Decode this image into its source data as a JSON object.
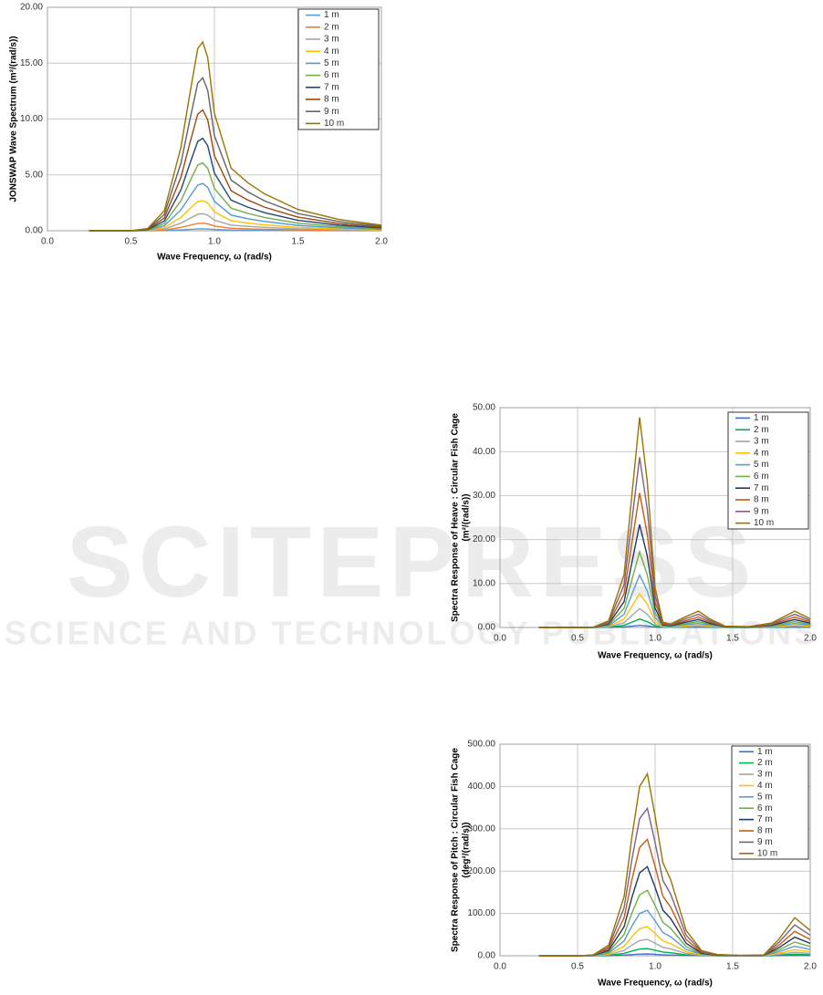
{
  "watermark": {
    "brand": "SCITEPRESS",
    "tagline": "SCIENCE AND TECHNOLOGY PUBLICATIONS"
  },
  "chart_data": [
    {
      "type": "line",
      "x_label": "Wave Frequency, ω (rad/s)",
      "y_label": [
        "JONSWAP Wave Spectrum (m²/(rad/s))"
      ],
      "xlim": [
        0,
        2
      ],
      "ylim": [
        0,
        20
      ],
      "grid": true,
      "legend": "upper right",
      "xticks": [
        {
          "value": 0,
          "label": "0.0"
        },
        {
          "value": 0.5,
          "label": "0.5"
        },
        {
          "value": 1,
          "label": "1.0"
        },
        {
          "value": 1.5,
          "label": "1.5"
        },
        {
          "value": 2,
          "label": "2.0"
        }
      ],
      "yticks": [
        {
          "value": 0,
          "label": "0.00"
        },
        {
          "value": 5,
          "label": "5.00"
        },
        {
          "value": 10,
          "label": "10.00"
        },
        {
          "value": 15,
          "label": "15.00"
        },
        {
          "value": 20,
          "label": "20.00"
        }
      ],
      "x": [
        0.25,
        0.5,
        0.6,
        0.7,
        0.8,
        0.85,
        0.9,
        0.93,
        0.96,
        1.0,
        1.1,
        1.2,
        1.3,
        1.5,
        1.75,
        2.0
      ],
      "series": [
        {
          "name": "1 m",
          "color": "#5b9bd5",
          "values": [
            0,
            0,
            0,
            0.02,
            0.08,
            0.12,
            0.16,
            0.17,
            0.16,
            0.11,
            0.06,
            0.04,
            0.03,
            0.02,
            0.01,
            0.01
          ]
        },
        {
          "name": "2 m",
          "color": "#ed7d31",
          "values": [
            0,
            0,
            0.01,
            0.07,
            0.3,
            0.48,
            0.65,
            0.68,
            0.62,
            0.42,
            0.22,
            0.17,
            0.13,
            0.08,
            0.04,
            0.02
          ]
        },
        {
          "name": "3 m",
          "color": "#a5a5a5",
          "values": [
            0,
            0,
            0.02,
            0.16,
            0.68,
            1.08,
            1.47,
            1.52,
            1.4,
            0.95,
            0.5,
            0.39,
            0.3,
            0.17,
            0.09,
            0.05
          ]
        },
        {
          "name": "4 m",
          "color": "#ffc000",
          "values": [
            0,
            0,
            0.03,
            0.29,
            1.2,
            1.92,
            2.61,
            2.7,
            2.48,
            1.68,
            0.9,
            0.69,
            0.53,
            0.3,
            0.16,
            0.08
          ]
        },
        {
          "name": "5 m",
          "color": "#4e9ad8",
          "values": [
            0,
            0,
            0.05,
            0.45,
            1.88,
            3,
            4.08,
            4.23,
            3.88,
            2.63,
            1.4,
            1.08,
            0.83,
            0.48,
            0.25,
            0.13
          ]
        },
        {
          "name": "6 m",
          "color": "#70ad47",
          "values": [
            0,
            0,
            0.07,
            0.65,
            2.7,
            4.32,
            5.87,
            6.08,
            5.58,
            3.78,
            2.02,
            1.55,
            1.19,
            0.68,
            0.36,
            0.18
          ]
        },
        {
          "name": "7 m",
          "color": "#264478",
          "values": [
            0,
            0,
            0.1,
            0.88,
            3.68,
            5.88,
            7.99,
            8.28,
            7.6,
            5.15,
            2.74,
            2.11,
            1.62,
            0.93,
            0.49,
            0.25
          ]
        },
        {
          "name": "8 m",
          "color": "#9e480e",
          "values": [
            0,
            0,
            0.13,
            1.15,
            4.8,
            7.68,
            10.43,
            10.82,
            9.92,
            6.72,
            3.58,
            2.75,
            2.11,
            1.22,
            0.64,
            0.32
          ]
        },
        {
          "name": "9 m",
          "color": "#636363",
          "values": [
            0,
            0,
            0.16,
            1.46,
            6.08,
            9.72,
            13.2,
            13.69,
            12.56,
            8.51,
            4.54,
            3.48,
            2.67,
            1.54,
            0.81,
            0.41
          ]
        },
        {
          "name": "10 m",
          "color": "#997300",
          "values": [
            0,
            0,
            0.2,
            1.8,
            7.5,
            12,
            16.3,
            16.9,
            15.5,
            10.5,
            5.6,
            4.3,
            3.3,
            1.9,
            1.0,
            0.5
          ]
        }
      ]
    },
    {
      "type": "line",
      "x_label": "Wave Frequency, ω (rad/s)",
      "y_label": [
        "Spectra Response of Heave : Circular Fish Cage",
        "(m²/(rad/s))"
      ],
      "xlim": [
        0,
        2
      ],
      "ylim": [
        0,
        50
      ],
      "grid": true,
      "legend": "upper right",
      "xticks": [
        {
          "value": 0,
          "label": "0.0"
        },
        {
          "value": 0.5,
          "label": "0.5"
        },
        {
          "value": 1,
          "label": "1.0"
        },
        {
          "value": 1.5,
          "label": "1.5"
        },
        {
          "value": 2,
          "label": "2.0"
        }
      ],
      "yticks": [
        {
          "value": 0,
          "label": "0.00"
        },
        {
          "value": 10,
          "label": "10.00"
        },
        {
          "value": 20,
          "label": "20.00"
        },
        {
          "value": 30,
          "label": "30.00"
        },
        {
          "value": 40,
          "label": "40.00"
        },
        {
          "value": 50,
          "label": "50.00"
        }
      ],
      "x": [
        0.25,
        0.5,
        0.6,
        0.7,
        0.8,
        0.85,
        0.9,
        0.95,
        1.0,
        1.05,
        1.1,
        1.2,
        1.28,
        1.35,
        1.45,
        1.6,
        1.75,
        1.9,
        2.0
      ],
      "series": [
        {
          "name": "1 m",
          "color": "#4472c4",
          "values": [
            0,
            0,
            0,
            0.02,
            0.12,
            0.3,
            0.48,
            0.33,
            0.09,
            0.01,
            0.01,
            0.03,
            0.04,
            0.02,
            0,
            0,
            0.01,
            0.04,
            0.02
          ]
        },
        {
          "name": "2 m",
          "color": "#00b050",
          "values": [
            0,
            0,
            0,
            0.06,
            0.48,
            1.2,
            1.91,
            1.32,
            0.36,
            0.05,
            0.03,
            0.1,
            0.15,
            0.08,
            0.01,
            0.01,
            0.04,
            0.15,
            0.08
          ]
        },
        {
          "name": "3 m",
          "color": "#a5a5a5",
          "values": [
            0,
            0,
            0,
            0.14,
            1.08,
            2.7,
            4.3,
            2.97,
            0.81,
            0.11,
            0.07,
            0.23,
            0.33,
            0.18,
            0.03,
            0.02,
            0.09,
            0.33,
            0.18
          ]
        },
        {
          "name": "4 m",
          "color": "#ffc000",
          "values": [
            0,
            0,
            0.01,
            0.24,
            1.92,
            4.8,
            7.65,
            5.28,
            1.44,
            0.19,
            0.13,
            0.4,
            0.59,
            0.32,
            0.05,
            0.03,
            0.16,
            0.59,
            0.32
          ]
        },
        {
          "name": "5 m",
          "color": "#5b9bd5",
          "values": [
            0,
            0,
            0.01,
            0.38,
            3,
            7.5,
            11.95,
            8.25,
            2.25,
            0.3,
            0.2,
            0.63,
            0.93,
            0.5,
            0.08,
            0.05,
            0.25,
            0.93,
            0.5
          ]
        },
        {
          "name": "6 m",
          "color": "#70ad47",
          "values": [
            0,
            0,
            0.02,
            0.54,
            4.32,
            10.8,
            17.21,
            11.88,
            3.24,
            0.43,
            0.29,
            0.9,
            1.33,
            0.72,
            0.11,
            0.07,
            0.36,
            1.33,
            0.72
          ]
        },
        {
          "name": "7 m",
          "color": "#1f3864",
          "values": [
            0,
            0,
            0.02,
            0.74,
            5.88,
            14.7,
            23.42,
            16.17,
            4.41,
            0.59,
            0.39,
            1.23,
            1.81,
            0.98,
            0.15,
            0.1,
            0.49,
            1.81,
            0.98
          ]
        },
        {
          "name": "8 m",
          "color": "#c55a11",
          "values": [
            0,
            0,
            0.03,
            0.96,
            7.68,
            19.2,
            30.59,
            21.12,
            5.76,
            0.77,
            0.51,
            1.6,
            2.37,
            1.28,
            0.19,
            0.13,
            0.64,
            2.37,
            1.28
          ]
        },
        {
          "name": "9 m",
          "color": "#7f6084",
          "values": [
            0,
            0,
            0.04,
            1.22,
            9.72,
            24.3,
            38.72,
            26.73,
            7.29,
            0.97,
            0.65,
            2.03,
            3,
            1.62,
            0.24,
            0.16,
            0.81,
            3,
            1.62
          ]
        },
        {
          "name": "10 m",
          "color": "#997300",
          "values": [
            0,
            0,
            0.05,
            1.5,
            12,
            30,
            47.8,
            33,
            9,
            1.2,
            0.8,
            2.5,
            3.7,
            2.0,
            0.3,
            0.2,
            1.0,
            3.7,
            2.0
          ]
        }
      ]
    },
    {
      "type": "line",
      "x_label": "Wave Frequency, ω (rad/s)",
      "y_label": [
        "Spectra Response of Pitch : Circular Fish Cage",
        "(deg²/(rad/s))"
      ],
      "xlim": [
        0,
        2
      ],
      "ylim": [
        0,
        500
      ],
      "grid": true,
      "legend": "upper right",
      "xticks": [
        {
          "value": 0,
          "label": "0.0"
        },
        {
          "value": 0.5,
          "label": "0.5"
        },
        {
          "value": 1,
          "label": "1.0"
        },
        {
          "value": 1.5,
          "label": "1.5"
        },
        {
          "value": 2,
          "label": "2.0"
        }
      ],
      "yticks": [
        {
          "value": 0,
          "label": "0.00"
        },
        {
          "value": 100,
          "label": "100.00"
        },
        {
          "value": 200,
          "label": "200.00"
        },
        {
          "value": 300,
          "label": "300.00"
        },
        {
          "value": 400,
          "label": "400.00"
        },
        {
          "value": 500,
          "label": "500.00"
        }
      ],
      "x": [
        0.25,
        0.5,
        0.6,
        0.7,
        0.8,
        0.85,
        0.9,
        0.95,
        1.0,
        1.05,
        1.1,
        1.2,
        1.3,
        1.4,
        1.55,
        1.7,
        1.8,
        1.9,
        2.0
      ],
      "series": [
        {
          "name": "1 m",
          "color": "#4472c4",
          "values": [
            0,
            0,
            0.02,
            0.25,
            1.4,
            2.8,
            4,
            4.3,
            3.3,
            2.2,
            1.8,
            0.6,
            0.12,
            0.03,
            0.01,
            0.02,
            0.4,
            0.9,
            0.6
          ]
        },
        {
          "name": "2 m",
          "color": "#00b050",
          "values": [
            0,
            0,
            0.08,
            1,
            5.6,
            11.2,
            16,
            17.2,
            13.2,
            8.8,
            7.2,
            2.4,
            0.48,
            0.12,
            0.04,
            0.08,
            1.6,
            3.6,
            2.4
          ]
        },
        {
          "name": "3 m",
          "color": "#a5a5a5",
          "values": [
            0,
            0,
            0.18,
            2.25,
            12.6,
            25.2,
            36,
            38.7,
            29.7,
            19.8,
            16.2,
            5.4,
            1.08,
            0.27,
            0.09,
            0.18,
            3.6,
            8.1,
            5.4
          ]
        },
        {
          "name": "4 m",
          "color": "#ffc000",
          "values": [
            0,
            0,
            0.32,
            4,
            22.4,
            44.8,
            64,
            68.8,
            52.8,
            35.2,
            28.8,
            9.6,
            1.92,
            0.48,
            0.16,
            0.32,
            6.4,
            14.4,
            9.6
          ]
        },
        {
          "name": "5 m",
          "color": "#5b9bd5",
          "values": [
            0,
            0,
            0.5,
            6.25,
            35,
            70,
            100,
            107.5,
            82.5,
            55,
            45,
            15,
            3,
            0.75,
            0.25,
            0.5,
            10,
            22.5,
            15
          ]
        },
        {
          "name": "6 m",
          "color": "#70ad47",
          "values": [
            0,
            0,
            0.72,
            9,
            50.4,
            100.8,
            144,
            154.8,
            118.8,
            79.2,
            64.8,
            21.6,
            4.32,
            1.08,
            0.36,
            0.72,
            14.4,
            32.4,
            21.6
          ]
        },
        {
          "name": "7 m",
          "color": "#1f3864",
          "values": [
            0,
            0,
            0.98,
            12.25,
            68.6,
            137.2,
            196,
            210.7,
            161.7,
            107.8,
            88.2,
            29.4,
            5.88,
            1.47,
            0.49,
            0.98,
            19.6,
            44.1,
            29.4
          ]
        },
        {
          "name": "8 m",
          "color": "#c55a11",
          "values": [
            0,
            0,
            1.28,
            16,
            89.6,
            179.2,
            256,
            275.2,
            211.2,
            140.8,
            115.2,
            38.4,
            7.68,
            1.92,
            0.64,
            1.28,
            25.6,
            57.6,
            38.4
          ]
        },
        {
          "name": "9 m",
          "color": "#7f6084",
          "values": [
            0,
            0,
            1.62,
            20.25,
            113.4,
            226.8,
            324,
            348.3,
            267.3,
            178.2,
            145.8,
            48.6,
            9.72,
            2.43,
            0.81,
            1.62,
            32.4,
            72.9,
            48.6
          ]
        },
        {
          "name": "10 m",
          "color": "#997300",
          "values": [
            0,
            0,
            2,
            25,
            140,
            280,
            400,
            430,
            330,
            220,
            180,
            60,
            12,
            3,
            1,
            2,
            40,
            90,
            60
          ]
        }
      ]
    }
  ]
}
